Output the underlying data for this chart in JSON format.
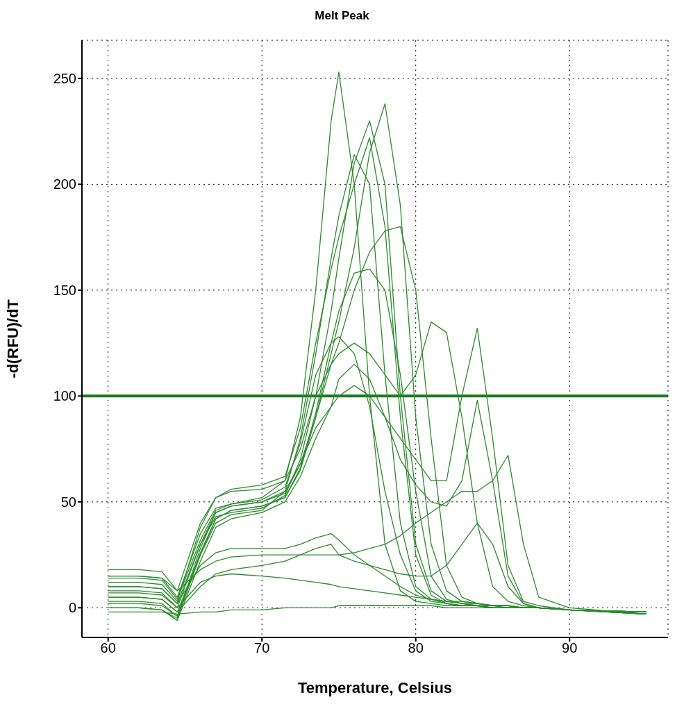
{
  "chart_data": {
    "type": "line",
    "title": "Melt Peak",
    "xlabel": "Temperature, Celsius",
    "ylabel": "-d(RFU)/dT",
    "xlim": [
      58.3,
      96.4
    ],
    "xticks": [
      60,
      70,
      80,
      90
    ],
    "ylim": [
      -14,
      268
    ],
    "yticks": [
      0,
      50,
      100,
      150,
      200,
      250
    ],
    "grid": true,
    "marker": "none",
    "line_style": "solid",
    "ref_lines": [
      {
        "axis": "y",
        "value": 100,
        "color": "#1f7a1f"
      }
    ],
    "x": [
      60,
      62,
      63.5,
      64.5,
      66,
      67,
      68,
      70,
      71.5,
      72.5,
      73.5,
      74.5,
      75,
      76,
      77,
      78,
      79,
      80,
      81,
      82,
      83,
      84,
      85,
      86,
      87,
      88,
      90,
      95
    ],
    "series": [
      {
        "color": "#2a8a2a",
        "values": [
          15,
          15,
          14,
          5,
          35,
          47,
          49,
          52,
          60,
          90,
          150,
          230,
          253,
          200,
          100,
          30,
          8,
          3,
          2,
          1,
          1,
          1,
          0,
          0,
          0,
          0,
          -1,
          -3
        ]
      },
      {
        "color": "#2a8a2a",
        "values": [
          5,
          5,
          4,
          -2,
          25,
          42,
          46,
          48,
          52,
          65,
          90,
          120,
          135,
          170,
          215,
          238,
          190,
          90,
          30,
          8,
          3,
          2,
          1,
          1,
          0,
          0,
          -1,
          -2
        ]
      },
      {
        "color": "#2a8a2a",
        "values": [
          10,
          10,
          9,
          2,
          30,
          43,
          45,
          47,
          53,
          70,
          100,
          140,
          165,
          210,
          230,
          200,
          100,
          30,
          8,
          3,
          2,
          1,
          1,
          0,
          0,
          0,
          -1,
          -3
        ]
      },
      {
        "color": "#2a8a2a",
        "values": [
          0,
          0,
          -1,
          -5,
          25,
          40,
          44,
          46,
          55,
          80,
          120,
          165,
          185,
          214,
          200,
          110,
          40,
          10,
          4,
          2,
          1,
          1,
          0,
          0,
          0,
          0,
          -1,
          -2
        ]
      },
      {
        "color": "#2a8a2a",
        "values": [
          12,
          12,
          11,
          3,
          38,
          52,
          56,
          58,
          62,
          85,
          125,
          160,
          175,
          200,
          222,
          180,
          90,
          25,
          6,
          2,
          1,
          1,
          0,
          0,
          0,
          0,
          -1,
          -3
        ]
      },
      {
        "color": "#2a8a2a",
        "values": [
          8,
          8,
          7,
          0,
          30,
          45,
          48,
          50,
          55,
          68,
          90,
          115,
          125,
          150,
          168,
          178,
          180,
          150,
          80,
          20,
          5,
          2,
          1,
          1,
          0,
          0,
          -1,
          -2
        ]
      },
      {
        "color": "#2a8a2a",
        "values": [
          18,
          18,
          17,
          8,
          40,
          52,
          55,
          56,
          60,
          75,
          100,
          115,
          120,
          125,
          120,
          110,
          100,
          110,
          135,
          130,
          90,
          40,
          10,
          3,
          1,
          0,
          -1,
          -3
        ]
      },
      {
        "color": "#2a8a2a",
        "values": [
          3,
          3,
          2,
          -4,
          28,
          45,
          48,
          50,
          54,
          68,
          85,
          95,
          100,
          105,
          100,
          90,
          80,
          70,
          60,
          60,
          100,
          132,
          80,
          20,
          3,
          1,
          -1,
          -2
        ]
      },
      {
        "color": "#2a8a2a",
        "values": [
          15,
          15,
          14,
          8,
          18,
          22,
          24,
          25,
          25,
          25,
          25,
          25,
          25,
          26,
          28,
          30,
          34,
          40,
          45,
          50,
          55,
          55,
          60,
          72,
          30,
          5,
          0,
          -3
        ]
      },
      {
        "color": "#2a8a2a",
        "values": [
          5,
          5,
          4,
          -2,
          10,
          16,
          18,
          20,
          22,
          25,
          28,
          30,
          25,
          22,
          20,
          18,
          16,
          15,
          15,
          20,
          30,
          40,
          30,
          10,
          2,
          0,
          -1,
          -2
        ]
      },
      {
        "color": "#2a8a2a",
        "values": [
          -2,
          -2,
          -2,
          -3,
          -2,
          -2,
          -1,
          -1,
          0,
          0,
          0,
          0,
          1,
          1,
          1,
          1,
          1,
          1,
          1,
          0,
          0,
          0,
          0,
          0,
          0,
          0,
          -1,
          -2
        ]
      },
      {
        "color": "#2a8a2a",
        "values": [
          10,
          10,
          9,
          2,
          20,
          26,
          28,
          28,
          28,
          30,
          33,
          35,
          32,
          25,
          20,
          15,
          10,
          6,
          4,
          3,
          2,
          2,
          1,
          1,
          0,
          0,
          -1,
          -2
        ]
      },
      {
        "color": "#2a8a2a",
        "values": [
          7,
          7,
          6,
          0,
          12,
          15,
          16,
          15,
          14,
          13,
          12,
          11,
          10,
          9,
          8,
          7,
          6,
          5,
          4,
          3,
          3,
          2,
          1,
          1,
          0,
          0,
          -1,
          -2
        ]
      },
      {
        "color": "#2a8a2a",
        "values": [
          0,
          0,
          -1,
          -6,
          22,
          38,
          42,
          45,
          50,
          62,
          80,
          95,
          108,
          115,
          108,
          90,
          70,
          58,
          50,
          48,
          60,
          98,
          60,
          15,
          2,
          0,
          -1,
          -2
        ]
      },
      {
        "color": "#2a8a2a",
        "values": [
          14,
          14,
          13,
          4,
          32,
          46,
          49,
          51,
          57,
          78,
          110,
          125,
          128,
          120,
          95,
          55,
          25,
          8,
          3,
          2,
          1,
          1,
          0,
          0,
          0,
          0,
          -1,
          -3
        ]
      },
      {
        "color": "#2a8a2a",
        "values": [
          2,
          2,
          1,
          -4,
          26,
          42,
          46,
          48,
          52,
          66,
          92,
          125,
          140,
          158,
          160,
          150,
          110,
          55,
          15,
          4,
          2,
          1,
          0,
          0,
          0,
          0,
          -1,
          -2
        ]
      }
    ]
  }
}
